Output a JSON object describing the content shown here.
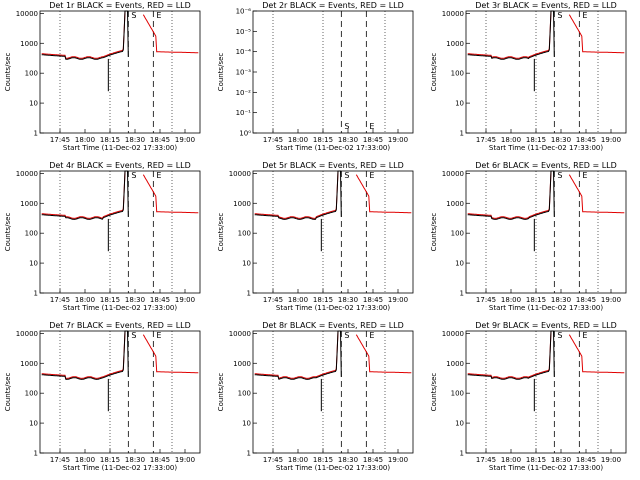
{
  "chart_data": [
    {
      "type": "line",
      "title": "Det 1r BLACK = Events, RED = LLD",
      "xlabel": "Start Time (11-Dec-02 17:33:00)",
      "ylabel": "Counts/sec",
      "x_ticks": [
        "17:45",
        "18:00",
        "18:15",
        "18:30",
        "18:45",
        "19:00"
      ],
      "y_ticks": [
        "1",
        "10",
        "100",
        "1000",
        "10000"
      ],
      "yscale": "log",
      "ylim": [
        1,
        12000
      ],
      "markers": [
        {
          "label": "S",
          "x": "18:26"
        },
        {
          "label": "E",
          "x": "18:41"
        }
      ],
      "blank": false
    },
    {
      "type": "line",
      "title": "Det 2r BLACK = Events, RED = LLD",
      "xlabel": "Start Time (11-Dec-02 17:33:00)",
      "ylabel": "Counts/sec",
      "x_ticks": [
        "17:45",
        "18:00",
        "18:15",
        "18:30",
        "18:45",
        "19:00"
      ],
      "y_ticks": [
        "10⁰",
        "10⁻¹",
        "10⁻²",
        "10⁻³",
        "10⁻⁴",
        "10⁻⁵",
        "10⁻⁶"
      ],
      "yscale": "log",
      "markers": [
        {
          "label": "S",
          "x": "18:26"
        },
        {
          "label": "E",
          "x": "18:41"
        }
      ],
      "blank": true
    },
    {
      "type": "line",
      "title": "Det 3r BLACK = Events, RED = LLD",
      "xlabel": "Start Time (11-Dec-02 17:33:00)",
      "ylabel": "Counts/sec",
      "x_ticks": [
        "17:45",
        "18:00",
        "18:15",
        "18:30",
        "18:45",
        "19:00"
      ],
      "y_ticks": [
        "1",
        "10",
        "100",
        "1000",
        "10000"
      ],
      "yscale": "log",
      "ylim": [
        1,
        12000
      ],
      "markers": [
        {
          "label": "S",
          "x": "18:26"
        },
        {
          "label": "E",
          "x": "18:41"
        }
      ],
      "blank": false
    },
    {
      "type": "line",
      "title": "Det 4r BLACK = Events, RED = LLD",
      "xlabel": "Start Time (11-Dec-02 17:33:00)",
      "ylabel": "Counts/sec",
      "x_ticks": [
        "17:45",
        "18:00",
        "18:15",
        "18:30",
        "18:45",
        "19:00"
      ],
      "y_ticks": [
        "1",
        "10",
        "100",
        "1000",
        "10000"
      ],
      "yscale": "log",
      "ylim": [
        1,
        12000
      ],
      "markers": [
        {
          "label": "S",
          "x": "18:26"
        },
        {
          "label": "E",
          "x": "18:41"
        }
      ],
      "blank": false
    },
    {
      "type": "line",
      "title": "Det 5r BLACK = Events, RED = LLD",
      "xlabel": "Start Time (11-Dec-02 17:33:00)",
      "ylabel": "Counts/sec",
      "x_ticks": [
        "17:45",
        "18:00",
        "18:15",
        "18:30",
        "18:45",
        "19:00"
      ],
      "y_ticks": [
        "1",
        "10",
        "100",
        "1000",
        "10000"
      ],
      "yscale": "log",
      "ylim": [
        1,
        12000
      ],
      "markers": [
        {
          "label": "S",
          "x": "18:26"
        },
        {
          "label": "E",
          "x": "18:41"
        }
      ],
      "blank": false
    },
    {
      "type": "line",
      "title": "Det 6r BLACK = Events, RED = LLD",
      "xlabel": "Start Time (11-Dec-02 17:33:00)",
      "ylabel": "Counts/sec",
      "x_ticks": [
        "17:45",
        "18:00",
        "18:15",
        "18:30",
        "18:45",
        "19:00"
      ],
      "y_ticks": [
        "1",
        "10",
        "100",
        "1000",
        "10000"
      ],
      "yscale": "log",
      "ylim": [
        1,
        12000
      ],
      "markers": [
        {
          "label": "S",
          "x": "18:26"
        },
        {
          "label": "E",
          "x": "18:41"
        }
      ],
      "blank": false
    },
    {
      "type": "line",
      "title": "Det 7r BLACK = Events, RED = LLD",
      "xlabel": "Start Time (11-Dec-02 17:33:00)",
      "ylabel": "Counts/sec",
      "x_ticks": [
        "17:45",
        "18:00",
        "18:15",
        "18:30",
        "18:45",
        "19:00"
      ],
      "y_ticks": [
        "1",
        "10",
        "100",
        "1000",
        "10000"
      ],
      "yscale": "log",
      "ylim": [
        1,
        12000
      ],
      "markers": [
        {
          "label": "S",
          "x": "18:26"
        },
        {
          "label": "E",
          "x": "18:41"
        }
      ],
      "blank": false
    },
    {
      "type": "line",
      "title": "Det 8r BLACK = Events, RED = LLD",
      "xlabel": "Start Time (11-Dec-02 17:33:00)",
      "ylabel": "Counts/sec",
      "x_ticks": [
        "17:45",
        "18:00",
        "18:15",
        "18:30",
        "18:45",
        "19:00"
      ],
      "y_ticks": [
        "1",
        "10",
        "100",
        "1000",
        "10000"
      ],
      "yscale": "log",
      "ylim": [
        1,
        12000
      ],
      "markers": [
        {
          "label": "S",
          "x": "18:26"
        },
        {
          "label": "E",
          "x": "18:41"
        }
      ],
      "blank": false
    },
    {
      "type": "line",
      "title": "Det 9r BLACK = Events, RED = LLD",
      "xlabel": "Start Time (11-Dec-02 17:33:00)",
      "ylabel": "Counts/sec",
      "x_ticks": [
        "17:45",
        "18:00",
        "18:15",
        "18:30",
        "18:45",
        "19:00"
      ],
      "y_ticks": [
        "1",
        "10",
        "100",
        "1000",
        "10000"
      ],
      "yscale": "log",
      "ylim": [
        1,
        12000
      ],
      "markers": [
        {
          "label": "S",
          "x": "18:26"
        },
        {
          "label": "E",
          "x": "18:41"
        }
      ],
      "blank": false
    }
  ],
  "colors": {
    "events": "#000000",
    "lld": "#e00000",
    "background": "#ffffff"
  }
}
